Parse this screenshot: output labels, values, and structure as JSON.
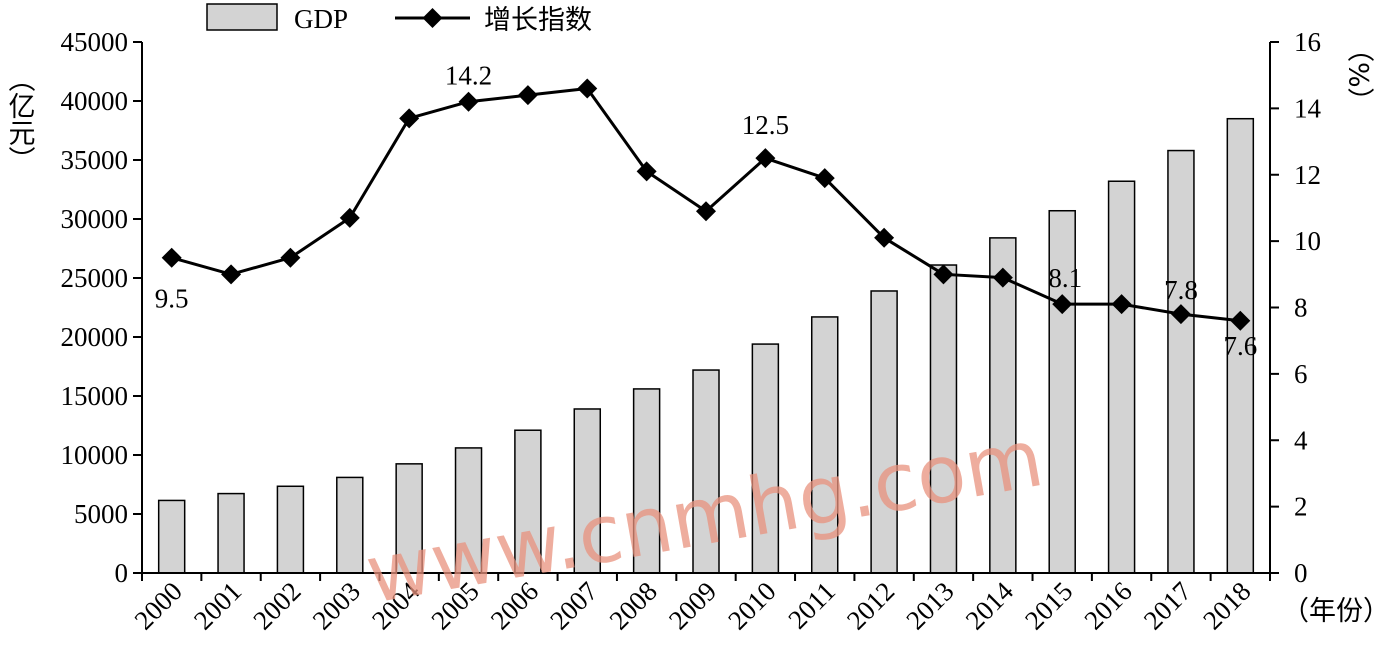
{
  "chart_data": {
    "type": "bar",
    "categories": [
      "2000",
      "2001",
      "2002",
      "2003",
      "2004",
      "2005",
      "2006",
      "2007",
      "2008",
      "2009",
      "2010",
      "2011",
      "2012",
      "2013",
      "2014",
      "2015",
      "2016",
      "2017",
      "2018"
    ],
    "series": [
      {
        "name": "GDP",
        "type": "bar",
        "axis": "left",
        "values": [
          6150,
          6730,
          7350,
          8100,
          9250,
          10600,
          12100,
          13900,
          15600,
          17200,
          19400,
          21700,
          23900,
          26100,
          28400,
          30700,
          33200,
          35800,
          38500
        ],
        "color": "#d3d3d3"
      },
      {
        "name": "增长指数",
        "type": "line",
        "axis": "right",
        "values": [
          9.5,
          9.0,
          9.5,
          10.7,
          13.7,
          14.2,
          14.4,
          14.6,
          12.1,
          10.9,
          12.5,
          11.9,
          10.1,
          9.0,
          8.9,
          8.1,
          8.1,
          7.8,
          7.6
        ],
        "color": "#000000",
        "marker": "diamond"
      }
    ],
    "y_left": {
      "label": "（亿元）",
      "ylim": [
        0,
        45000
      ],
      "ticks": [
        0,
        5000,
        10000,
        15000,
        20000,
        25000,
        30000,
        35000,
        40000,
        45000
      ]
    },
    "y_right": {
      "label": "（%）",
      "ylim": [
        0,
        16
      ],
      "ticks": [
        0,
        2,
        4,
        6,
        8,
        10,
        12,
        14,
        16
      ]
    },
    "x_unit_label": "（年份）",
    "annotations": [
      {
        "index": 0,
        "text": "9.5"
      },
      {
        "index": 5,
        "text": "14.2"
      },
      {
        "index": 10,
        "text": "12.5"
      },
      {
        "index": 15,
        "text": "8.1"
      },
      {
        "index": 17,
        "text": "7.8"
      },
      {
        "index": 18,
        "text": "7.6"
      }
    ],
    "legend": {
      "placement": "top-left",
      "items": [
        {
          "label": "GDP",
          "kind": "bar"
        },
        {
          "label": "增长指数",
          "kind": "line-diamond"
        }
      ]
    },
    "grid": false
  },
  "watermark": "www.cnmhg.com"
}
